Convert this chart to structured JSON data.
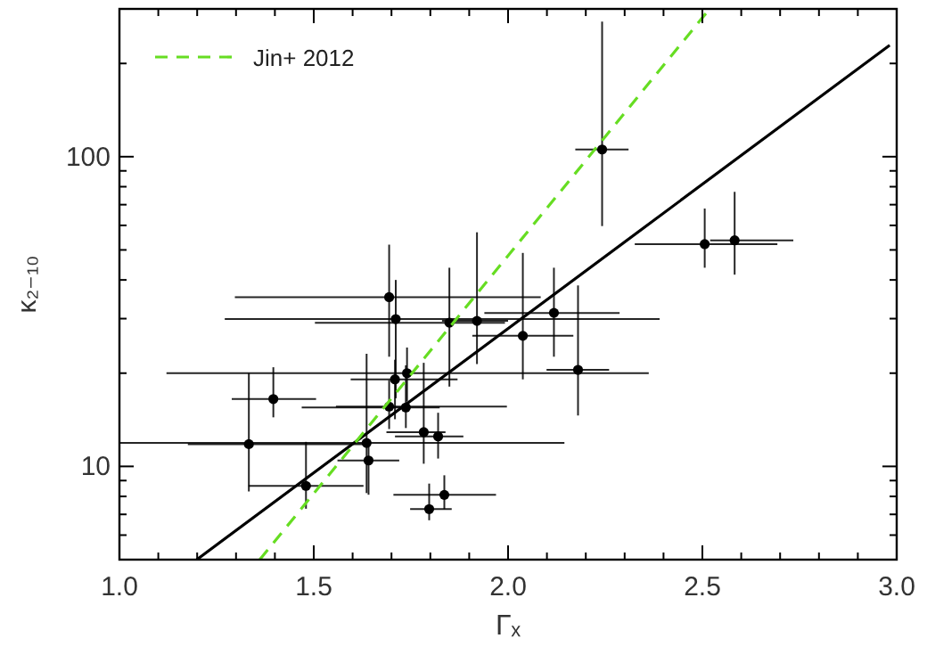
{
  "chart_data": {
    "type": "scatter",
    "xlabel": "Γₓ",
    "ylabel": "κ₂₋₁₀",
    "log": "y",
    "legend": "top left",
    "xlim": [
      1.0,
      3.0
    ],
    "ylim": [
      5,
      300
    ],
    "xticks": [
      {
        "value": 1.0,
        "label": "1.0"
      },
      {
        "value": 1.1,
        "label": null
      },
      {
        "value": 1.2,
        "label": null
      },
      {
        "value": 1.3,
        "label": null
      },
      {
        "value": 1.4,
        "label": null
      },
      {
        "value": 1.5,
        "label": "1.5"
      },
      {
        "value": 1.6,
        "label": null
      },
      {
        "value": 1.7,
        "label": null
      },
      {
        "value": 1.8,
        "label": null
      },
      {
        "value": 1.9,
        "label": null
      },
      {
        "value": 2.0,
        "label": "2.0"
      },
      {
        "value": 2.1,
        "label": null
      },
      {
        "value": 2.2,
        "label": null
      },
      {
        "value": 2.3,
        "label": null
      },
      {
        "value": 2.4,
        "label": null
      },
      {
        "value": 2.5,
        "label": "2.5"
      },
      {
        "value": 2.6,
        "label": null
      },
      {
        "value": 2.7,
        "label": null
      },
      {
        "value": 2.8,
        "label": null
      },
      {
        "value": 2.9,
        "label": null
      },
      {
        "value": 3.0,
        "label": "3.0"
      }
    ],
    "yticks": [
      {
        "value": 5,
        "label": null
      },
      {
        "value": 6,
        "label": null
      },
      {
        "value": 7,
        "label": null
      },
      {
        "value": 8,
        "label": null
      },
      {
        "value": 9,
        "label": null
      },
      10,
      {
        "value": 20,
        "label": null
      },
      {
        "value": 30,
        "label": null
      },
      {
        "value": 40,
        "label": null
      },
      {
        "value": 50,
        "label": null
      },
      {
        "value": 60,
        "label": null
      },
      {
        "value": 70,
        "label": null
      },
      {
        "value": 80,
        "label": null
      },
      {
        "value": 90,
        "label": null
      },
      100,
      {
        "value": 200,
        "label": null
      },
      {
        "value": 300,
        "label": null
      }
    ],
    "series": [
      {
        "marker": "circle",
        "color": "#000000",
        "x": [
          1.333,
          1.396,
          1.48,
          1.636,
          1.641,
          1.694,
          1.694,
          1.711,
          1.709,
          1.74,
          1.737,
          1.783,
          1.82,
          1.797,
          1.836,
          1.849,
          1.92,
          2.038,
          2.118,
          2.18,
          2.242,
          2.506,
          2.583
        ],
        "values": [
          11.8,
          16.5,
          8.65,
          11.9,
          10.45,
          15.6,
          35.2,
          29.9,
          19.1,
          20.0,
          15.5,
          12.9,
          12.5,
          7.28,
          8.09,
          29.1,
          29.5,
          26.4,
          31.3,
          20.5,
          105.5,
          52.2,
          53.7
        ],
        "errors": [
          [
            8.3,
            20
          ],
          [
            14.4,
            20.9
          ],
          [
            7.3,
            12.0
          ],
          [
            8.2,
            23.1
          ],
          [
            8.1,
            11.9
          ],
          [
            13.2,
            19
          ],
          [
            22.6,
            52
          ],
          [
            16.6,
            40
          ],
          [
            14.2,
            22.1
          ],
          [
            16.2,
            24.2
          ],
          [
            13.3,
            21.2
          ],
          [
            10.2,
            21.6
          ],
          [
            10.6,
            14.9
          ],
          [
            6.7,
            8.8
          ],
          [
            7.28,
            9.36
          ],
          [
            18.1,
            43.8
          ],
          [
            21.4,
            57
          ],
          [
            19.1,
            48.9
          ],
          [
            22.6,
            43.8
          ],
          [
            14.6,
            38.4
          ],
          [
            59.7,
            273
          ],
          [
            43.8,
            68
          ],
          [
            41.6,
            77
          ]
        ],
        "xerrors": [
          [
            1.176,
            1.628
          ],
          [
            1.289,
            1.506
          ],
          [
            1.332,
            1.628
          ],
          [
            1.0,
            2.145
          ],
          [
            1.561,
            1.72
          ],
          [
            1.557,
            1.997
          ],
          [
            1.297,
            2.084
          ],
          [
            1.271,
            2.39
          ],
          [
            1.595,
            1.87
          ],
          [
            1.121,
            2.362
          ],
          [
            1.469,
            1.824
          ],
          [
            1.687,
            1.839
          ],
          [
            1.709,
            1.885
          ],
          [
            1.748,
            1.855
          ],
          [
            1.705,
            1.969
          ],
          [
            1.503,
            1.992
          ],
          [
            1.83,
            2.0
          ],
          [
            1.908,
            2.168
          ],
          [
            1.939,
            2.287
          ],
          [
            2.099,
            2.26
          ],
          [
            2.173,
            2.31
          ],
          [
            2.326,
            2.693
          ],
          [
            2.52,
            2.734
          ]
        ]
      },
      {
        "type": "line",
        "color": "#000000",
        "line_style": "solid",
        "x": [
          1.199,
          2.982
        ],
        "values": [
          5,
          229
        ]
      },
      {
        "type": "line",
        "name": "Jin+ 2012",
        "color": "#66dd22",
        "line_style": "dashed",
        "x": [
          1.361,
          2.509
        ],
        "values": [
          5,
          290
        ]
      }
    ]
  }
}
